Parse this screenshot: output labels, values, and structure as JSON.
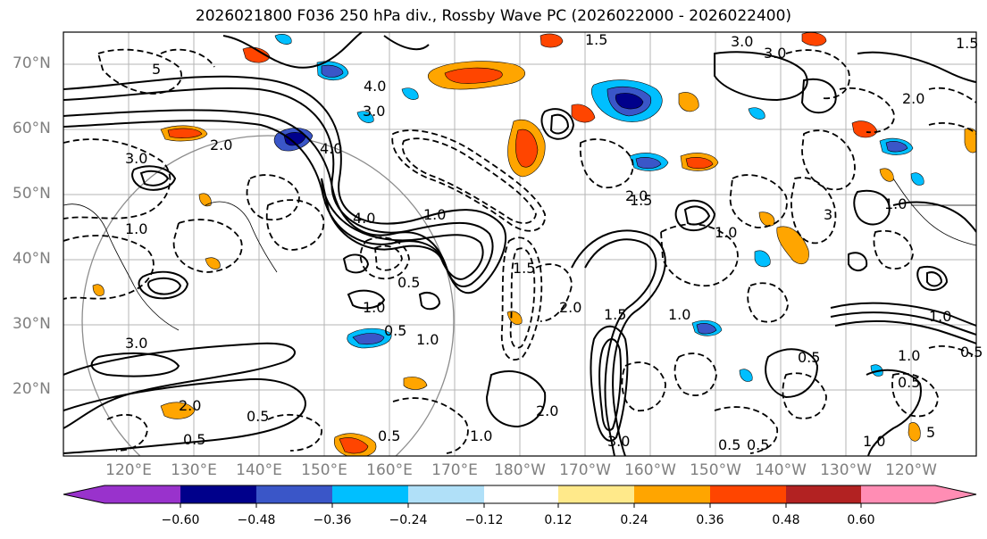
{
  "title": "2026021800 F036 250 hPa div., Rossby Wave PC (2026022000 - 2026022400)",
  "lat_labels": [
    "70°N",
    "60°N",
    "50°N",
    "40°N",
    "30°N",
    "20°N"
  ],
  "lon_labels": [
    "120°E",
    "130°E",
    "140°E",
    "150°E",
    "160°E",
    "170°E",
    "180°W",
    "170°W",
    "160°W",
    "150°W",
    "140°W",
    "130°W",
    "120°W"
  ],
  "colorbar": {
    "ticks": [
      "−0.60",
      "−0.48",
      "−0.36",
      "−0.24",
      "−0.12",
      "0.12",
      "0.24",
      "0.36",
      "0.48",
      "0.60"
    ],
    "colors": [
      "#9932cc",
      "#00008b",
      "#3a56c8",
      "#00bfff",
      "#b0e0f8",
      "#ffffff",
      "#ffe98a",
      "#ffa500",
      "#ff4500",
      "#b22222",
      "#ff8db4"
    ]
  },
  "contour_labels": [
    "1.5",
    "3.0",
    "4.0",
    "3.0",
    "4.0",
    "5",
    "3.0",
    "2.0",
    "3.0",
    "2.0",
    "1.0",
    "4.0",
    "2.0",
    "1.5",
    "0.5",
    "1.0",
    "1.0",
    "2.0",
    "3.0",
    "1.5",
    "1.0",
    "1.0",
    "0.5",
    "2.0",
    "1.0",
    "0.5",
    "1.5",
    "0.5",
    "3.0",
    "0.5",
    "0.5",
    "0.5",
    "1.0",
    "1.0",
    "1.0",
    "2.0",
    "1.5",
    "1.0",
    "0.5",
    "0.5",
    "5",
    "1.0",
    "3",
    "0.5"
  ]
}
